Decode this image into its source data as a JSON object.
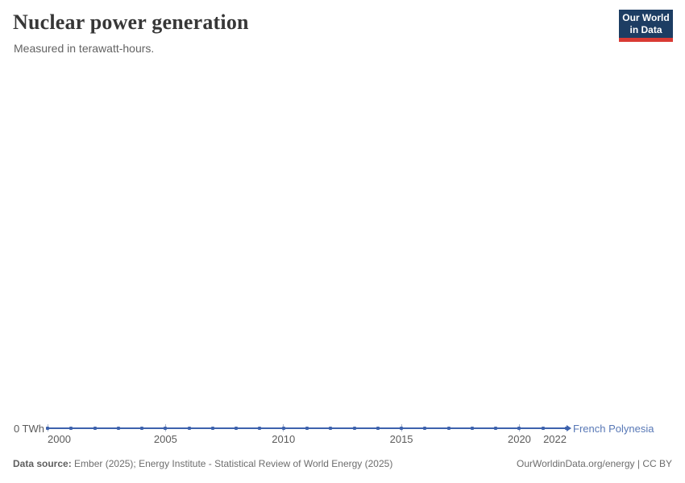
{
  "header": {
    "title": "Nuclear power generation",
    "subtitle": "Measured in terawatt-hours.",
    "logo": {
      "line1": "Our World",
      "line2": "in Data",
      "bg_color": "#1d3d63",
      "stripe_color": "#d93a34",
      "text_color": "#ffffff"
    }
  },
  "chart_data": {
    "type": "line",
    "title": "Nuclear power generation",
    "subtitle": "Measured in terawatt-hours.",
    "unit": "terawatt-hours",
    "xlim": [
      2000,
      2022
    ],
    "ylim": [
      0,
      0
    ],
    "grid": false,
    "y_axis_label": "0 TWh",
    "x_ticks": [
      2000,
      2005,
      2010,
      2015,
      2020,
      2022
    ],
    "series": [
      {
        "name": "French Polynesia",
        "color": "#3d62ad",
        "label_color": "#5878b6",
        "x": [
          2000,
          2001,
          2002,
          2003,
          2004,
          2005,
          2006,
          2007,
          2008,
          2009,
          2010,
          2011,
          2012,
          2013,
          2014,
          2015,
          2016,
          2017,
          2018,
          2019,
          2020,
          2021,
          2022
        ],
        "values": [
          0,
          0,
          0,
          0,
          0,
          0,
          0,
          0,
          0,
          0,
          0,
          0,
          0,
          0,
          0,
          0,
          0,
          0,
          0,
          0,
          0,
          0,
          0
        ]
      }
    ]
  },
  "footer": {
    "source_label": "Data source:",
    "source_text": "Ember (2025); Energy Institute - Statistical Review of World Energy (2025)",
    "link_text": "OurWorldinData.org/energy | CC BY"
  }
}
